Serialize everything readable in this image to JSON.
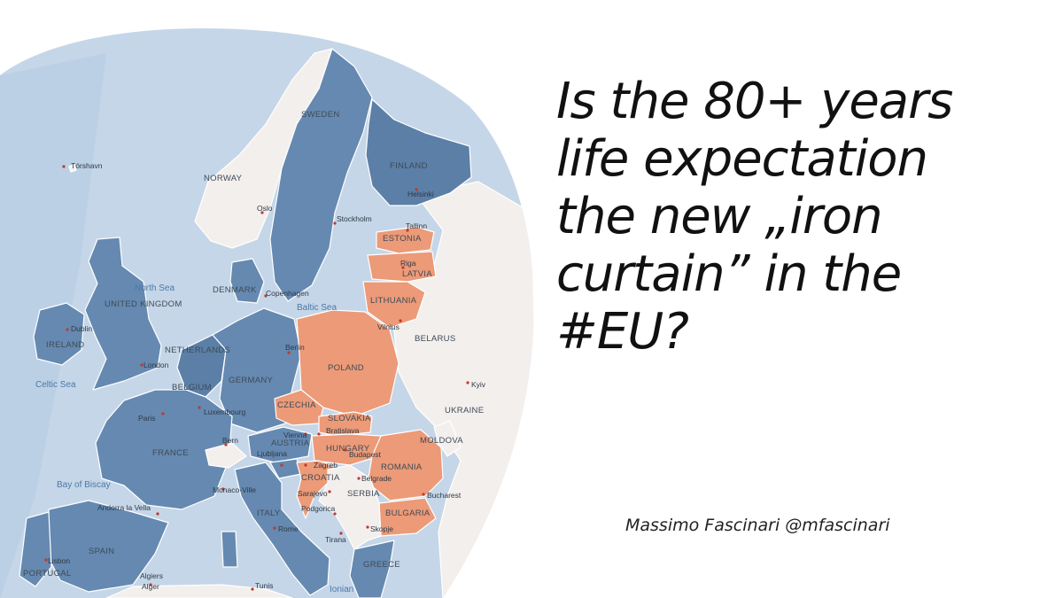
{
  "headline": {
    "lines": [
      "Is the 80+ years",
      "life expectation",
      "the new „iron",
      "curtain” in the",
      "#EU?"
    ]
  },
  "author": "Massimo Fascinari @mfascinari",
  "map": {
    "colors": {
      "sea": "#c5d6e8",
      "land_neutral": "#f3efed",
      "high_life_expectancy": "#6589b1",
      "high_dark": "#5b7fa6",
      "below_80": "#ec9a77",
      "land_outline": "#ffffff"
    },
    "countries": {
      "sweden": "SWEDEN",
      "finland": "FINLAND",
      "norway": "NORWAY",
      "estonia": "ESTONIA",
      "latvia": "LATVIA",
      "lithuania": "LITHUANIA",
      "belarus": "BELARUS",
      "poland": "POLAND",
      "germany": "GERMANY",
      "netherlands": "NETHERLANDS",
      "belgium": "BELGIUM",
      "denmark": "DENMARK",
      "uk": "UNITED KINGDOM",
      "ireland": "IRELAND",
      "france": "FRANCE",
      "czechia": "CZECHIA",
      "slovakia": "SLOVAKIA",
      "austria": "AUSTRIA",
      "hungary": "HUNGARY",
      "romania": "ROMANIA",
      "moldova": "MOLDOVA",
      "ukraine": "UKRAINE",
      "croatia": "CROATIA",
      "serbia": "SERBIA",
      "bulgaria": "BULGARIA",
      "italy": "ITALY",
      "spain": "SPAIN",
      "portugal": "PORTUGAL",
      "greece": "GREECE"
    },
    "cities": {
      "torshavn": "Tórshavn",
      "oslo": "Oslo",
      "stockholm": "Stockholm",
      "helsinki": "Helsinki",
      "tallinn": "Tallinn",
      "riga": "Riga",
      "vilnius": "Vilnius",
      "copenhagen": "Copenhagen",
      "berlin": "Berlin",
      "london": "London",
      "dublin": "Dublin",
      "paris": "Paris",
      "luxembourg": "Luxembourg",
      "bern": "Bern",
      "vienna": "Vienna",
      "bratislava": "Bratislava",
      "ljubljana": "Ljubljana",
      "zagreb": "Zagreb",
      "budapest": "Budapest",
      "belgrade": "Belgrade",
      "sarajevo": "Sarajevo",
      "podgorica": "Podgorica",
      "tirana": "Tirana",
      "skopje": "Skopje",
      "bucharest": "Bucharest",
      "kyiv": "Kyiv",
      "monaco": "Monaco-Ville",
      "andorra": "Andorra la Vella",
      "rome": "Rome",
      "lisbon": "Lisbon",
      "algiers": "Algiers",
      "alger": "Alger",
      "tunis": "Tunis"
    },
    "seas": {
      "north_sea": "North Sea",
      "baltic_sea": "Baltic Sea",
      "celtic_sea": "Celtic Sea",
      "bay_of_biscay": "Bay of Biscay",
      "ionian": "Ionian"
    }
  }
}
